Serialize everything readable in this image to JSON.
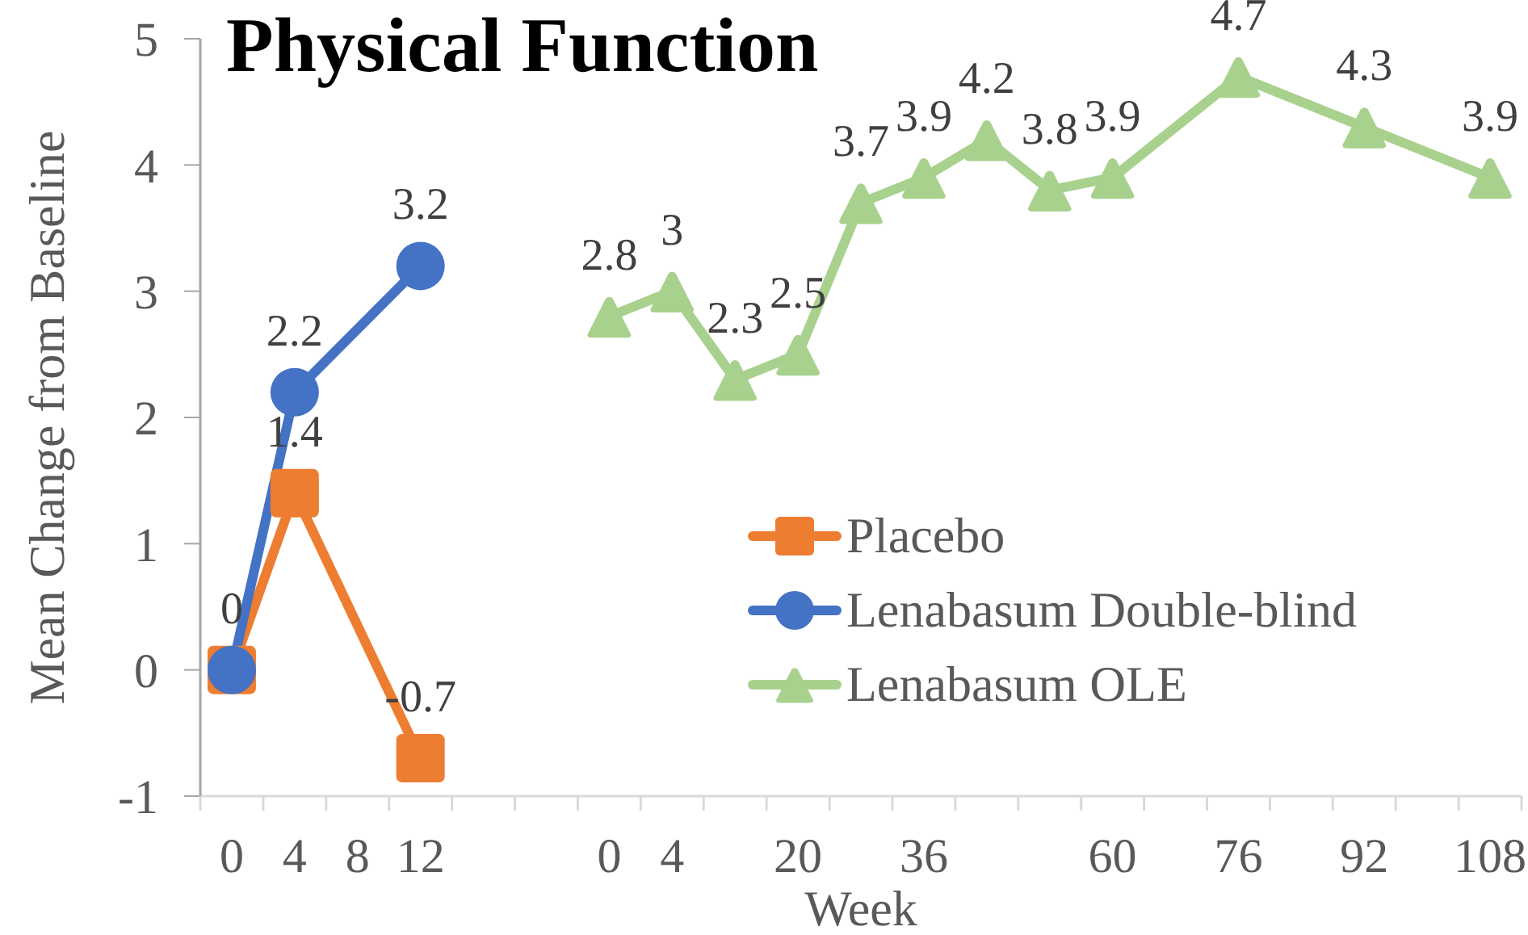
{
  "chart_data": {
    "type": "line",
    "title": "Physical Function",
    "xlabel": "Week",
    "ylabel": "Mean Change from Baseline",
    "categories": [
      "0",
      "4",
      "8",
      "12",
      null,
      null,
      "0",
      "4",
      null,
      "20",
      null,
      "36",
      null,
      null,
      "60",
      null,
      "76",
      null,
      "92",
      null,
      "108"
    ],
    "series": [
      {
        "name": "Placebo",
        "color": "#ed7d31",
        "marker": "square",
        "values": [
          0,
          1.4,
          null,
          -0.7,
          null,
          null,
          null,
          null,
          null,
          null,
          null,
          null,
          null,
          null,
          null,
          null,
          null,
          null,
          null,
          null,
          null
        ],
        "value_labels": [
          null,
          "1.4",
          null,
          "-0.7",
          null,
          null,
          null,
          null,
          null,
          null,
          null,
          null,
          null,
          null,
          null,
          null,
          null,
          null,
          null,
          null,
          null
        ]
      },
      {
        "name": "Lenabasum Double-blind",
        "color": "#4472c4",
        "marker": "circle",
        "values": [
          0,
          2.2,
          null,
          3.2,
          null,
          null,
          null,
          null,
          null,
          null,
          null,
          null,
          null,
          null,
          null,
          null,
          null,
          null,
          null,
          null,
          null
        ],
        "value_labels": [
          "0",
          "2.2",
          null,
          "3.2",
          null,
          null,
          null,
          null,
          null,
          null,
          null,
          null,
          null,
          null,
          null,
          null,
          null,
          null,
          null,
          null,
          null
        ]
      },
      {
        "name": "Lenabasum OLE",
        "color": "#a9d18e",
        "marker": "triangle",
        "values": [
          null,
          null,
          null,
          null,
          null,
          null,
          2.8,
          3,
          2.3,
          2.5,
          3.7,
          3.9,
          4.2,
          3.8,
          3.9,
          null,
          4.7,
          null,
          4.3,
          null,
          3.9
        ],
        "value_labels": [
          null,
          null,
          null,
          null,
          null,
          null,
          "2.8",
          "3",
          "2.3",
          "2.5",
          "3.7",
          "3.9",
          "4.2",
          "3.8",
          "3.9",
          null,
          "4.7",
          null,
          "4.3",
          null,
          "3.9"
        ]
      }
    ],
    "ylim": [
      -1,
      5
    ],
    "yticks": [
      -1,
      0,
      1,
      2,
      3,
      4,
      5
    ],
    "legend": "bottom right"
  }
}
